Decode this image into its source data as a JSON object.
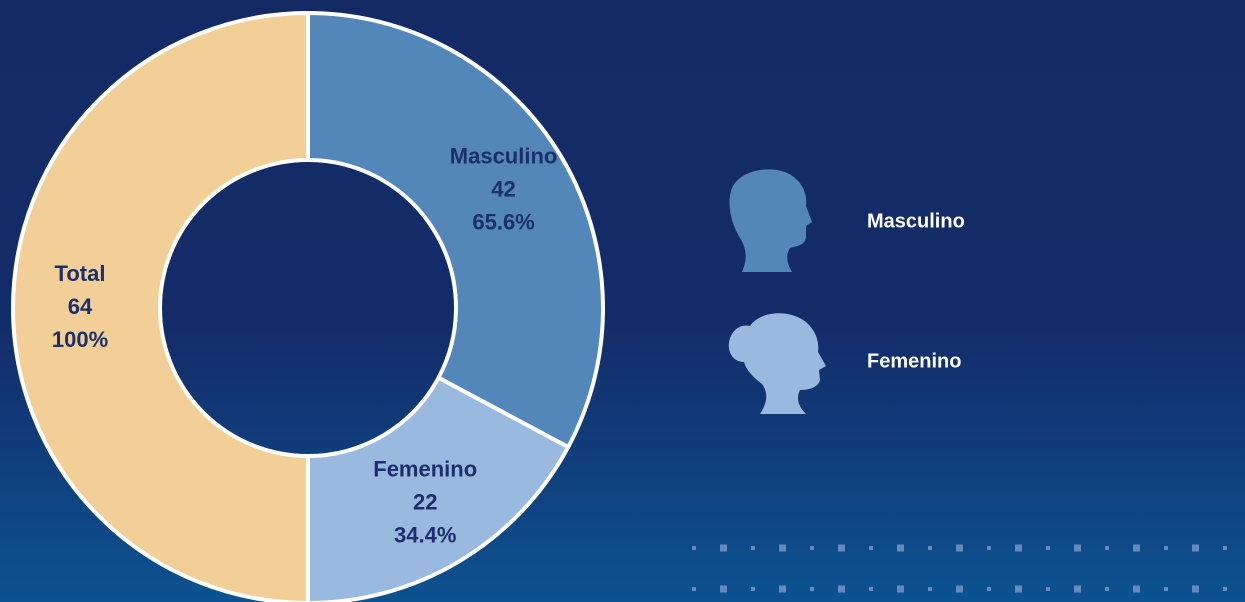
{
  "chart_data": {
    "type": "donut",
    "categories": [
      "Masculino",
      "Femenino",
      "Total"
    ],
    "values": [
      42,
      22,
      64
    ],
    "percentages": [
      65.6,
      34.4,
      100
    ],
    "percentage_labels": [
      "65.6%",
      "34.4%",
      "100%"
    ],
    "colors": [
      "#5386b9",
      "#9ab9de",
      "#f3cf98"
    ],
    "legend": [
      "Masculino",
      "Femenino"
    ]
  }
}
